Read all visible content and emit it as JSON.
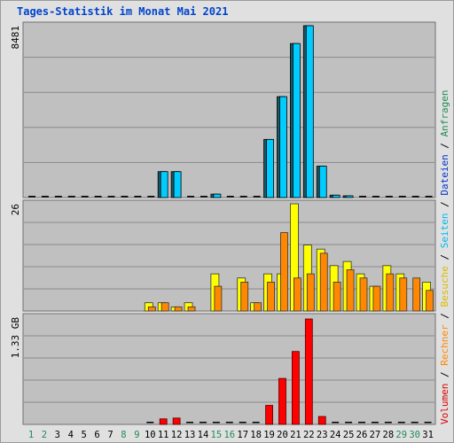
{
  "title": "Tages-Statistik im Monat Mai 2021",
  "chart_data": [
    {
      "type": "bar",
      "ylabel_max": "8481",
      "series": [
        {
          "name": "Seiten",
          "color": "#00ccff",
          "values": [
            0,
            0,
            0,
            0,
            0,
            0,
            0,
            0,
            0,
            0,
            1280,
            1280,
            0,
            0,
            170,
            0,
            0,
            0,
            2870,
            4980,
            7600,
            8481,
            1550,
            120,
            80,
            0,
            0,
            0,
            0,
            0,
            0
          ]
        },
        {
          "name": "Anfragen",
          "color": "#1a5a66",
          "values": [
            0,
            0,
            0,
            0,
            0,
            0,
            0,
            0,
            0,
            0,
            1280,
            1280,
            0,
            0,
            170,
            0,
            0,
            0,
            2870,
            4980,
            7600,
            8481,
            1550,
            120,
            80,
            0,
            0,
            0,
            0,
            0,
            0
          ]
        }
      ]
    },
    {
      "type": "bar",
      "ylabel_max": "26",
      "series": [
        {
          "name": "Besuche",
          "color": "#ffff00",
          "values": [
            0,
            0,
            0,
            0,
            0,
            0,
            0,
            0,
            0,
            2,
            2,
            1,
            2,
            0,
            9,
            0,
            8,
            2,
            9,
            9,
            26,
            16,
            15,
            11,
            12,
            9,
            6,
            11,
            9,
            0,
            7
          ]
        },
        {
          "name": "Rechner",
          "color": "#ff8800",
          "values": [
            0,
            0,
            0,
            0,
            0,
            0,
            0,
            0,
            0,
            1,
            2,
            1,
            1,
            0,
            6,
            0,
            7,
            2,
            7,
            19,
            8,
            9,
            14,
            7,
            10,
            8,
            6,
            9,
            8,
            8,
            5
          ]
        }
      ]
    },
    {
      "type": "bar",
      "ylabel_max": "1.33 GB",
      "series": [
        {
          "name": "Volumen",
          "color": "#ff0000",
          "values": [
            0,
            0,
            0,
            0,
            0,
            0,
            0,
            0,
            0,
            0,
            0.07,
            0.08,
            0,
            0,
            0,
            0,
            0,
            0,
            0.24,
            0.58,
            0.92,
            1.33,
            0.1,
            0,
            0,
            0,
            0,
            0,
            0,
            0,
            0
          ]
        }
      ]
    }
  ],
  "x_days": [
    "1",
    "2",
    "3",
    "4",
    "5",
    "6",
    "7",
    "8",
    "9",
    "10",
    "11",
    "12",
    "13",
    "14",
    "15",
    "16",
    "17",
    "18",
    "19",
    "20",
    "21",
    "22",
    "23",
    "24",
    "25",
    "26",
    "27",
    "28",
    "29",
    "30",
    "31"
  ],
  "weekend_days": [
    1,
    2,
    8,
    9,
    15,
    16,
    29,
    30
  ],
  "weekend_color": "#228b57",
  "legend": [
    {
      "label": "Volumen",
      "color": "#dd0000"
    },
    {
      "label": "Rechner",
      "color": "#ff8800"
    },
    {
      "label": "Besuche",
      "color": "#ddbb00"
    },
    {
      "label": "Seiten",
      "color": "#00bbee"
    },
    {
      "label": "Dateien",
      "color": "#0033cc"
    },
    {
      "label": "Anfragen",
      "color": "#228b57"
    }
  ],
  "legend_separator": " / "
}
